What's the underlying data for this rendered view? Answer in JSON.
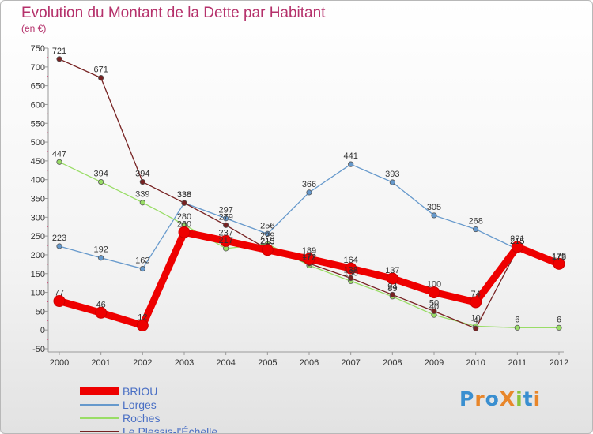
{
  "title": "Evolution du Montant de la Dette par Habitant",
  "subtitle": "(en €)",
  "logo": {
    "text": "ProXiti",
    "colors": [
      "#3a8fd0",
      "#e8862a",
      "#3a8fd0",
      "#e8862a",
      "#8ac33a",
      "#3a8fd0",
      "#e8862a"
    ]
  },
  "chart_data": {
    "type": "line",
    "title": "Evolution du Montant de la Dette par Habitant",
    "ylabel": "(en €)",
    "xlabel": "",
    "x": [
      "2000",
      "2001",
      "2002",
      "2003",
      "2004",
      "2005",
      "2006",
      "2007",
      "2008",
      "2009",
      "2010",
      "2011",
      "2012"
    ],
    "ylim": [
      -50,
      750
    ],
    "yticks": [
      -50,
      0,
      50,
      100,
      150,
      200,
      250,
      300,
      350,
      400,
      450,
      500,
      550,
      600,
      650,
      700,
      750
    ],
    "grid": false,
    "legend_position": "bottom-left",
    "series": [
      {
        "name": "BRIOU",
        "color": "#ee0000",
        "width": 9,
        "values": [
          77,
          46,
          12,
          260,
          237,
          213,
          189,
          164,
          137,
          100,
          74,
          221,
          176
        ]
      },
      {
        "name": "Lorges",
        "color": "#6699cc",
        "width": 1.3,
        "values": [
          223,
          192,
          163,
          338,
          297,
          256,
          366,
          441,
          393,
          305,
          268,
          215,
          173
        ]
      },
      {
        "name": "Roches",
        "color": "#99dd66",
        "width": 1.3,
        "values": [
          447,
          394,
          339,
          280,
          217,
          229,
          172,
          130,
          89,
          40,
          10,
          6,
          6
        ]
      },
      {
        "name": "Le Plessis-l'Échelle",
        "color": "#772222",
        "width": 1.3,
        "values": [
          721,
          671,
          394,
          338,
          279,
          215,
          177,
          138,
          94,
          50,
          4,
          215,
          173
        ]
      }
    ]
  }
}
